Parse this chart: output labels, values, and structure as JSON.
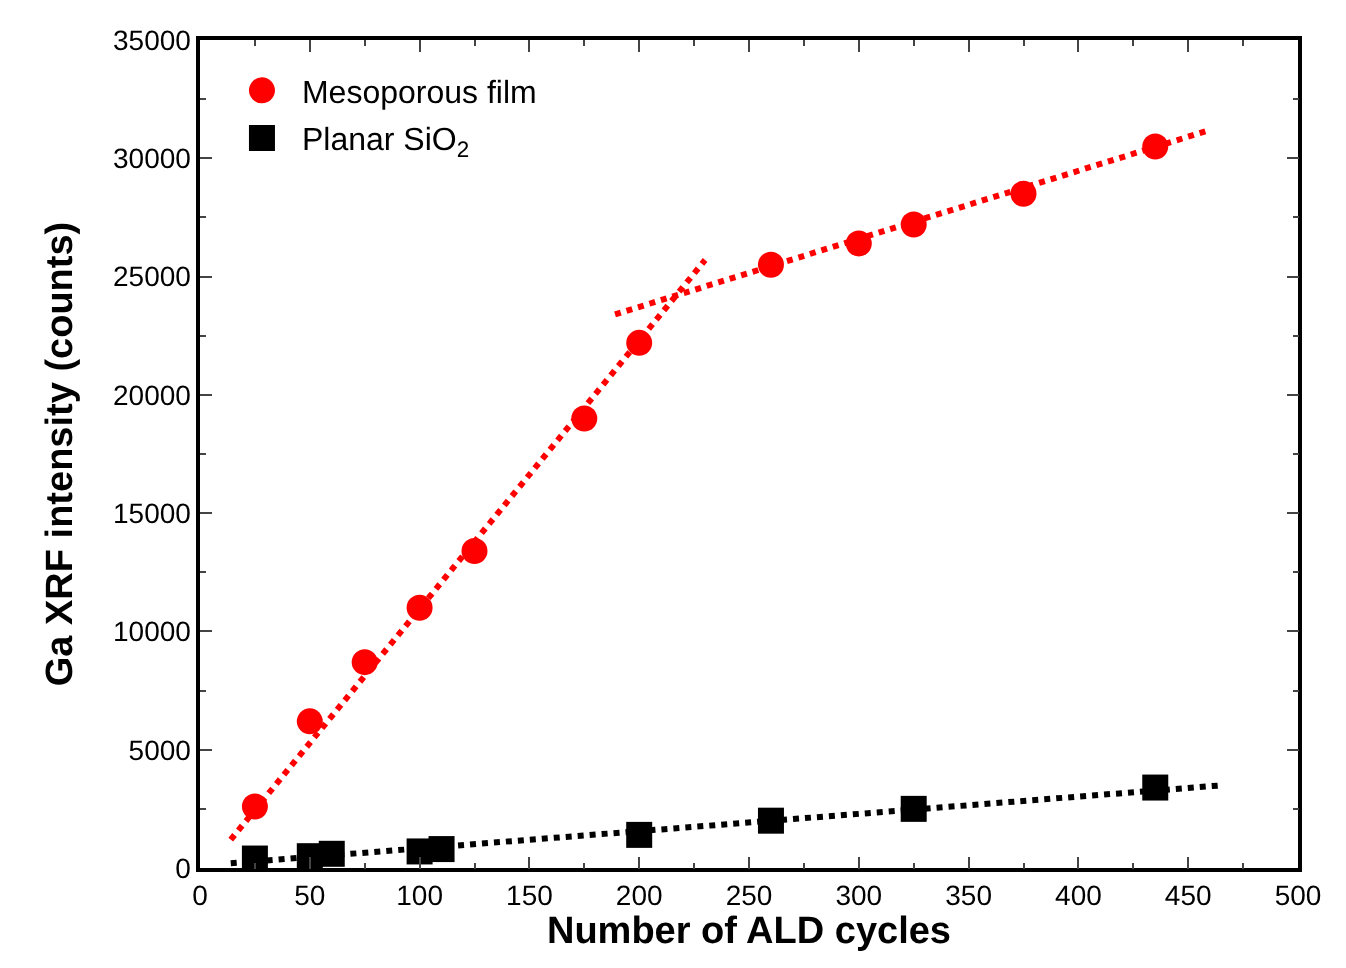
{
  "chart_data": {
    "type": "scatter",
    "xlabel": "Number of ALD cycles",
    "ylabel": "Ga XRF intensity (counts)",
    "xlim": [
      0,
      500
    ],
    "xticks": [
      0,
      50,
      100,
      150,
      200,
      250,
      300,
      350,
      400,
      450,
      500
    ],
    "ylim": [
      0,
      35000
    ],
    "yticks": [
      0,
      5000,
      10000,
      15000,
      20000,
      25000,
      30000,
      35000
    ],
    "legend": "top left",
    "series": [
      {
        "name": "Mesoporous film",
        "color": "#ff0000",
        "marker": "circle",
        "x": [
          25,
          50,
          75,
          100,
          125,
          175,
          200,
          260,
          300,
          325,
          375,
          435
        ],
        "values": [
          2600,
          6200,
          8700,
          11000,
          13400,
          19000,
          22200,
          25500,
          26400,
          27200,
          28500,
          30500
        ]
      },
      {
        "name": "Planar SiO$_{2}$",
        "color": "#000000",
        "marker": "square",
        "x": [
          25,
          50,
          60,
          100,
          110,
          200,
          260,
          325,
          435
        ],
        "values": [
          400,
          500,
          600,
          700,
          800,
          1400,
          2000,
          2500,
          3400
        ]
      },
      {
        "type": "line",
        "color": "#ff0000",
        "marker": "none",
        "line_style": "dotted",
        "x": [
          14,
          230
        ],
        "values": [
          1200,
          25700
        ]
      },
      {
        "type": "line",
        "color": "#ff0000",
        "marker": "none",
        "line_style": "dotted",
        "x": [
          189,
          460
        ],
        "values": [
          23400,
          31200
        ]
      },
      {
        "type": "line",
        "color": "#000000",
        "marker": "none",
        "line_style": "dotted",
        "x": [
          14,
          466
        ],
        "values": [
          200,
          3500
        ]
      }
    ]
  }
}
